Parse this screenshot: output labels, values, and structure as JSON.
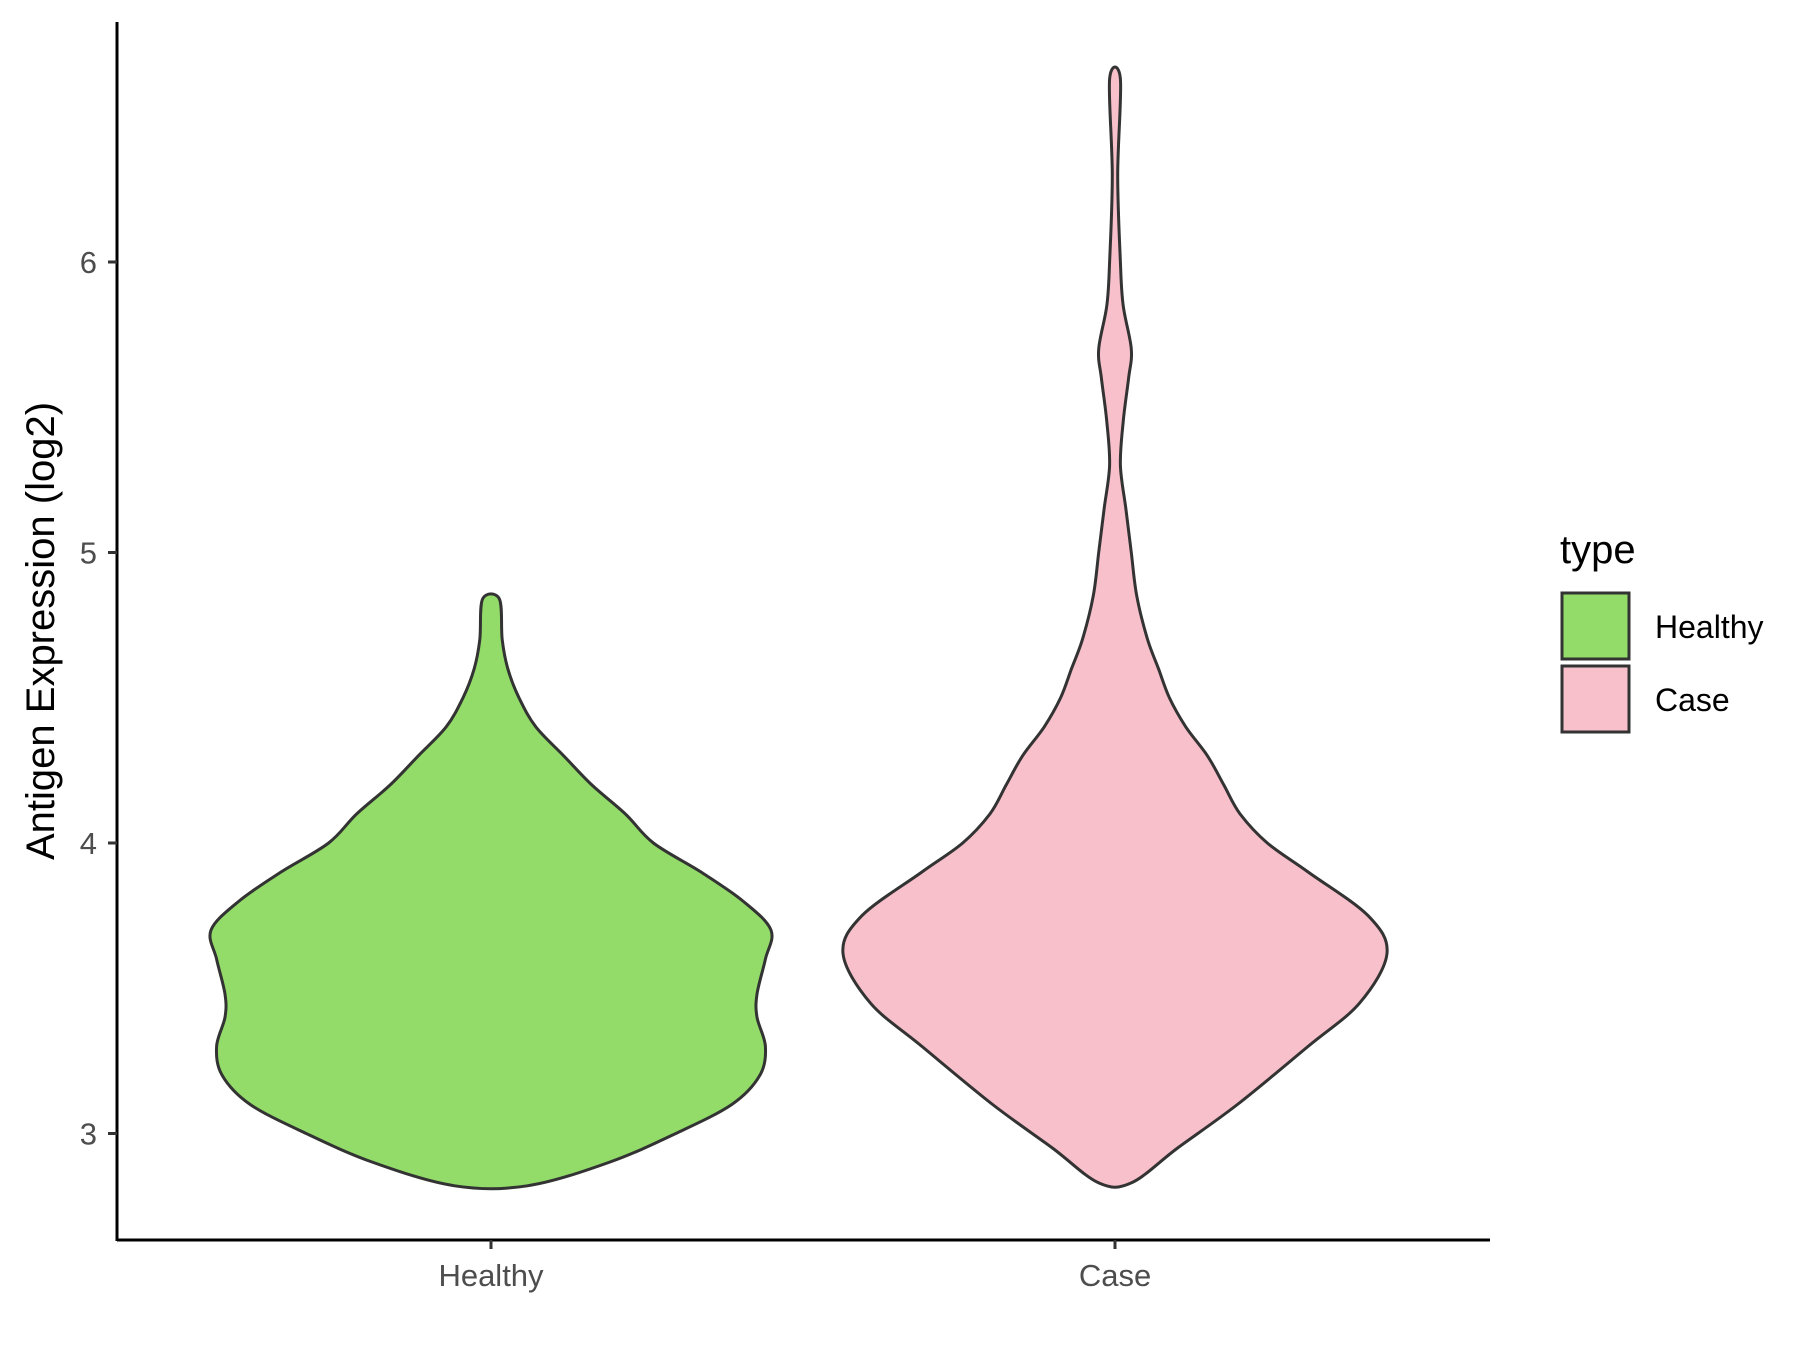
{
  "chart_data": {
    "type": "violin",
    "ylabel": "Antigen Expression (log2)",
    "xlabel": "",
    "categories": [
      "Healthy",
      "Case"
    ],
    "yticks": [
      3,
      4,
      5,
      6
    ],
    "ylim": [
      2.65,
      6.83
    ],
    "grid": false,
    "legend": {
      "title": "type",
      "position": "right",
      "entries": [
        {
          "label": "Healthy",
          "color": "#93DC6A"
        },
        {
          "label": "Case",
          "color": "#F7C0CB"
        }
      ]
    },
    "series": [
      {
        "category": "Healthy",
        "color": "#93DC6A",
        "min": 2.82,
        "max": 4.84,
        "density_profile": [
          [
            2.82,
            0.13
          ],
          [
            2.9,
            0.42
          ],
          [
            3.0,
            0.66
          ],
          [
            3.1,
            0.86
          ],
          [
            3.2,
            0.96
          ],
          [
            3.3,
            0.98
          ],
          [
            3.4,
            0.95
          ],
          [
            3.48,
            0.95
          ],
          [
            3.6,
            0.98
          ],
          [
            3.7,
            1.0
          ],
          [
            3.8,
            0.9
          ],
          [
            3.9,
            0.75
          ],
          [
            4.0,
            0.58
          ],
          [
            4.1,
            0.48
          ],
          [
            4.2,
            0.36
          ],
          [
            4.3,
            0.26
          ],
          [
            4.4,
            0.16
          ],
          [
            4.5,
            0.1
          ],
          [
            4.6,
            0.06
          ],
          [
            4.7,
            0.04
          ],
          [
            4.84,
            0.03
          ]
        ]
      },
      {
        "category": "Case",
        "color": "#F7C0CB",
        "min": 2.83,
        "max": 6.63,
        "density_profile": [
          [
            2.83,
            0.06
          ],
          [
            2.95,
            0.23
          ],
          [
            3.1,
            0.45
          ],
          [
            3.3,
            0.71
          ],
          [
            3.45,
            0.9
          ],
          [
            3.62,
            1.0
          ],
          [
            3.75,
            0.93
          ],
          [
            3.9,
            0.71
          ],
          [
            4.0,
            0.56
          ],
          [
            4.1,
            0.46
          ],
          [
            4.2,
            0.4
          ],
          [
            4.3,
            0.34
          ],
          [
            4.4,
            0.26
          ],
          [
            4.5,
            0.2
          ],
          [
            4.6,
            0.16
          ],
          [
            4.7,
            0.12
          ],
          [
            4.85,
            0.08
          ],
          [
            5.0,
            0.06
          ],
          [
            5.15,
            0.04
          ],
          [
            5.3,
            0.02
          ],
          [
            5.45,
            0.03
          ],
          [
            5.6,
            0.05
          ],
          [
            5.7,
            0.06
          ],
          [
            5.85,
            0.03
          ],
          [
            6.0,
            0.02
          ],
          [
            6.3,
            0.01
          ],
          [
            6.63,
            0.02
          ]
        ]
      }
    ]
  }
}
